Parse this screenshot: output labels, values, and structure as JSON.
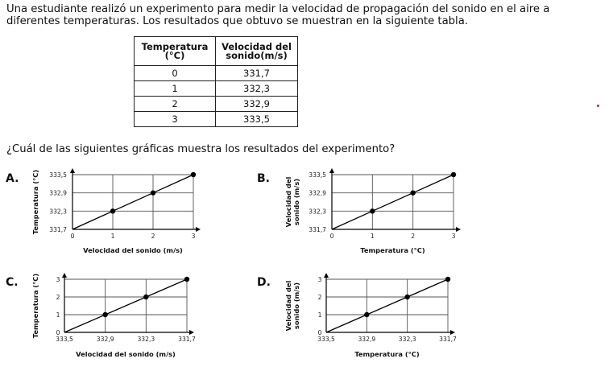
{
  "intro": "Una estudiante realizó un experimento para medir la velocidad de propagación del sonido en el aire a diferentes temperaturas. Los resultados que obtuvo se muestran en la siguiente tabla.",
  "table": {
    "headers": [
      "Temperatura\n(°C)",
      "Velocidad del\nsonido(m/s)"
    ],
    "rows": [
      [
        "0",
        "331,7"
      ],
      [
        "1",
        "332,3"
      ],
      [
        "2",
        "332,9"
      ],
      [
        "3",
        "333,5"
      ]
    ]
  },
  "question": "¿Cuál de las siguientes gráficas muestra los resultados del experimento?",
  "options": [
    {
      "letter": "A."
    },
    {
      "letter": "B."
    },
    {
      "letter": "C."
    },
    {
      "letter": "D."
    }
  ],
  "chart_data": [
    {
      "type": "line",
      "x": [
        0,
        1,
        2,
        3
      ],
      "y_ticks": [
        "331,7",
        "332,3",
        "332,9",
        "333,5"
      ],
      "x_ticks": [
        "0",
        "1",
        "2",
        "3"
      ],
      "y_index": [
        0,
        1,
        2,
        3
      ],
      "xlabel": "Velocidad del sonido (m/s)",
      "ylabel": [
        "Temperatura (°C)"
      ]
    },
    {
      "type": "line",
      "x": [
        0,
        1,
        2,
        3
      ],
      "y_ticks": [
        "331,7",
        "332,3",
        "332,9",
        "333,5"
      ],
      "x_ticks": [
        "0",
        "1",
        "2",
        "3"
      ],
      "y_index": [
        0,
        1,
        2,
        3
      ],
      "xlabel": "Temperatura (°C)",
      "ylabel": [
        "Velocidad del",
        "sonido (m/s)"
      ]
    },
    {
      "type": "line",
      "x_ticks": [
        "333,5",
        "332,9",
        "332,3",
        "331,7"
      ],
      "y_ticks": [
        "0",
        "1",
        "2",
        "3"
      ],
      "x_index": [
        0,
        1,
        2,
        3
      ],
      "y": [
        0,
        1,
        2,
        3
      ],
      "xlabel": "Velocidad del sonido (m/s)",
      "ylabel": [
        "Temperatura (°C)"
      ]
    },
    {
      "type": "line",
      "x_ticks": [
        "333,5",
        "332,9",
        "332,3",
        "331,7"
      ],
      "y_ticks": [
        "0",
        "1",
        "2",
        "3"
      ],
      "x_index": [
        0,
        1,
        2,
        3
      ],
      "y": [
        0,
        1,
        2,
        3
      ],
      "xlabel": "Temperatura (°C)",
      "ylabel": [
        "Velocidad del",
        "sonido (m/s)"
      ]
    }
  ]
}
